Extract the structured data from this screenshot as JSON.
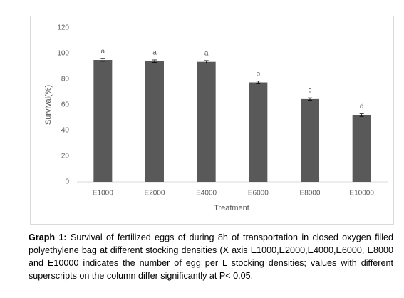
{
  "chart_data": {
    "type": "bar",
    "categories": [
      "E1000",
      "E2000",
      "E4000",
      "E6000",
      "E8000",
      "E10000"
    ],
    "values": [
      95,
      94,
      93.5,
      77.5,
      64.5,
      52
    ],
    "errors": [
      1,
      1,
      1,
      1,
      1,
      1
    ],
    "value_labels": [
      "a",
      "a",
      "a",
      "b",
      "c",
      "d"
    ],
    "color": "#595959",
    "ylim": [
      0,
      120
    ],
    "yticks": [
      0,
      20,
      40,
      60,
      80,
      100,
      120
    ],
    "grid": false,
    "xlabel": "Treatment",
    "ylabel": "Survival(%)"
  },
  "caption": {
    "label": "Graph 1:",
    "text": "Survival of fertilized eggs of during 8h of transportation in closed oxygen filled polyethylene bag at different stocking densities (X axis E1000,E2000,E4000,E6000, E8000 and E10000 indicates the number of egg per L stocking densities; values with different superscripts on the column differ significantly at P< 0.05."
  }
}
